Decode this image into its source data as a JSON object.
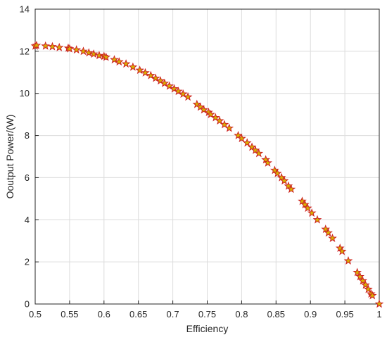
{
  "chart_data": {
    "type": "scatter",
    "xlabel": "Efficiency",
    "ylabel": "Ooutput Power/(W)",
    "xlim": [
      0.5,
      1
    ],
    "ylim": [
      0,
      14
    ],
    "xticks": [
      "0.5",
      "0.55",
      "0.6",
      "0.65",
      "0.7",
      "0.75",
      "0.8",
      "0.85",
      "0.9",
      "0.95",
      "1"
    ],
    "yticks": [
      "0",
      "2",
      "4",
      "6",
      "8",
      "10",
      "12",
      "14"
    ],
    "grid": true,
    "marker": "star",
    "marker_edge_color": "#cc2222",
    "marker_face_color": "#d9b000",
    "series": [
      {
        "x": [
          0.5,
          0.502,
          0.515,
          0.525,
          0.535,
          0.548,
          0.55,
          0.56,
          0.57,
          0.578,
          0.585,
          0.593,
          0.6,
          0.603,
          0.615,
          0.622,
          0.632,
          0.642,
          0.652,
          0.66,
          0.668,
          0.675,
          0.682,
          0.688,
          0.695,
          0.702,
          0.708,
          0.715,
          0.722,
          0.735,
          0.74,
          0.745,
          0.752,
          0.755,
          0.762,
          0.768,
          0.775,
          0.782,
          0.795,
          0.8,
          0.808,
          0.815,
          0.82,
          0.825,
          0.835,
          0.838,
          0.848,
          0.852,
          0.858,
          0.862,
          0.868,
          0.872,
          0.888,
          0.892,
          0.896,
          0.902,
          0.91,
          0.922,
          0.926,
          0.932,
          0.943,
          0.946,
          0.955,
          0.968,
          0.972,
          0.976,
          0.98,
          0.984,
          0.988,
          0.99,
          1.0
        ],
        "y": [
          12.25,
          12.28,
          12.25,
          12.22,
          12.18,
          12.15,
          12.12,
          12.07,
          12.0,
          11.93,
          11.87,
          11.8,
          11.76,
          11.72,
          11.6,
          11.5,
          11.4,
          11.25,
          11.1,
          10.98,
          10.85,
          10.72,
          10.6,
          10.48,
          10.35,
          10.22,
          10.1,
          9.97,
          9.83,
          9.48,
          9.35,
          9.22,
          9.1,
          9.0,
          8.85,
          8.7,
          8.52,
          8.35,
          8.0,
          7.86,
          7.65,
          7.45,
          7.3,
          7.15,
          6.85,
          6.7,
          6.35,
          6.2,
          6.0,
          5.85,
          5.6,
          5.45,
          4.88,
          4.72,
          4.55,
          4.32,
          4.0,
          3.55,
          3.38,
          3.12,
          2.65,
          2.5,
          2.05,
          1.5,
          1.3,
          1.1,
          0.9,
          0.7,
          0.48,
          0.4,
          0.0
        ]
      }
    ]
  }
}
